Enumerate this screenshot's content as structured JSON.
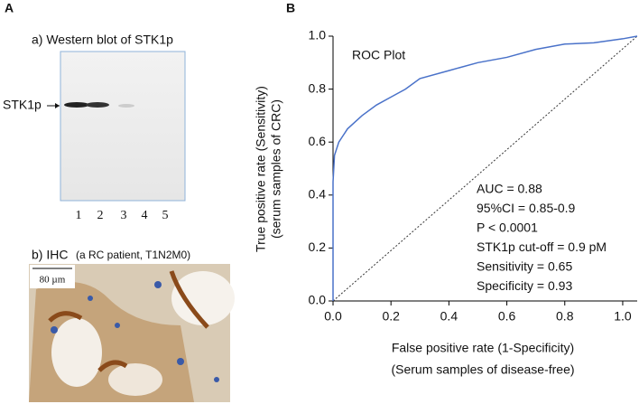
{
  "panel_labels": [
    "A",
    "B"
  ],
  "western_blot": {
    "title": "a) Western blot of STK1p",
    "marker": "STK1p",
    "lanes": [
      "1",
      "2",
      "3",
      "4",
      "5"
    ]
  },
  "ihc": {
    "title": "b) IHC",
    "subtitle": "(a RC patient, T1N2M0)",
    "scale": "80 µm"
  },
  "chart_data": {
    "type": "line",
    "title": "ROC Plot",
    "x_label": [
      "False positive rate (1-Specificity)",
      "(Serum samples of disease-free)"
    ],
    "y_label": [
      "True positive rate (Sensitivity)",
      "(serum samples of CRC)"
    ],
    "x": [
      0,
      0,
      0.005,
      0.02,
      0.05,
      0.1,
      0.15,
      0.2,
      0.25,
      0.3,
      0.4,
      0.5,
      0.6,
      0.7,
      0.8,
      0.9,
      1.0,
      1.05
    ],
    "series": [
      {
        "color": "#4a72c9",
        "values": [
          0,
          0.45,
          0.55,
          0.6,
          0.65,
          0.7,
          0.74,
          0.77,
          0.8,
          0.84,
          0.87,
          0.9,
          0.92,
          0.95,
          0.97,
          0.975,
          0.99,
          1.0
        ]
      }
    ],
    "xlim": [
      0,
      1.05
    ],
    "ylim": [
      0,
      1.0
    ],
    "xticks": [
      {
        "value": 0,
        "label": "0.0"
      },
      {
        "value": 0.2,
        "label": "0.2"
      },
      {
        "value": 0.4,
        "label": "0.4"
      },
      {
        "value": 0.6,
        "label": "0.6"
      },
      {
        "value": 0.8,
        "label": "0.8"
      },
      {
        "value": 1,
        "label": "1.0"
      }
    ],
    "yticks": [
      {
        "value": 0,
        "label": "0.0"
      },
      {
        "value": 0.2,
        "label": "0.2"
      },
      {
        "value": 0.4,
        "label": "0.4"
      },
      {
        "value": 0.6,
        "label": "0.6"
      },
      {
        "value": 0.8,
        "label": "0.8"
      },
      {
        "value": 1,
        "label": "1.0"
      }
    ],
    "annotations": [
      "AUC = 0.88",
      "95%CI = 0.85-0.9",
      "P < 0.0001",
      "STK1p cut-off = 0.9 pM",
      "Sensitivity = 0.65",
      "Specificity = 0.93"
    ]
  }
}
